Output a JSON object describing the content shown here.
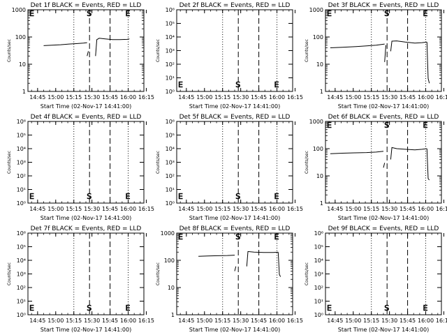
{
  "chart_data": [
    {
      "type": "line",
      "title": "Det 1f BLACK = Events, RED = LLD",
      "ylabel": "Counts/sec",
      "xlabel": "Start Time (02-Nov-17 14:41:00)",
      "log_y": true,
      "ylim": [
        1,
        1000
      ],
      "yticks": [
        "1",
        "10",
        "100",
        "1000"
      ],
      "xlim": [
        -4,
        92
      ],
      "xticks": [
        {
          "v": 4,
          "l": "14:45"
        },
        {
          "v": 19,
          "l": "15:00"
        },
        {
          "v": 34,
          "l": "15:15"
        },
        {
          "v": 49,
          "l": "15:30"
        },
        {
          "v": 64,
          "l": "15:45"
        },
        {
          "v": 79,
          "l": "16:00"
        },
        {
          "v": 94,
          "l": "16:15"
        }
      ],
      "markers": [
        {
          "v": -3,
          "l": "E"
        },
        {
          "v": 47,
          "l": "S"
        },
        {
          "v": 79,
          "l": "E"
        }
      ],
      "dashed": [
        47,
        64
      ],
      "dotted": [
        34,
        79
      ],
      "segments": [
        [
          [
            9,
            48
          ],
          [
            16,
            50
          ],
          [
            23,
            52
          ],
          [
            30,
            55
          ],
          [
            36,
            57
          ],
          [
            42,
            60
          ],
          [
            45,
            62
          ]
        ],
        [
          [
            45,
            20
          ],
          [
            46,
            30
          ]
        ],
        [
          [
            52,
            20
          ],
          [
            53,
            80
          ],
          [
            55,
            90
          ],
          [
            60,
            85
          ],
          [
            66,
            80
          ],
          [
            72,
            80
          ],
          [
            78,
            82
          ],
          [
            80,
            85
          ]
        ]
      ]
    },
    {
      "type": "line",
      "title": "Det 2f BLACK = Events, RED = LLD",
      "ylabel": "Counts/sec",
      "xlabel": "Start Time (02-Nov-17 14:41:00)",
      "log_y": true,
      "ylim": [
        1,
        1000000
      ],
      "yticks": [
        "10⁰",
        "10¹",
        "10²",
        "10³",
        "10⁴",
        "10⁵",
        "10⁶"
      ],
      "xlim": [
        -4,
        92
      ],
      "xticks": [
        {
          "v": 4,
          "l": "14:45"
        },
        {
          "v": 19,
          "l": "15:00"
        },
        {
          "v": 34,
          "l": "15:15"
        },
        {
          "v": 49,
          "l": "15:30"
        },
        {
          "v": 64,
          "l": "15:45"
        },
        {
          "v": 79,
          "l": "16:00"
        },
        {
          "v": 94,
          "l": "16:15"
        }
      ],
      "markers": [
        {
          "v": -3,
          "l": "E"
        },
        {
          "v": 47,
          "l": "S"
        },
        {
          "v": 79,
          "l": "E"
        }
      ],
      "dashed": [
        47,
        64
      ],
      "dotted": [
        34,
        79
      ],
      "segments": []
    },
    {
      "type": "line",
      "title": "Det 3f BLACK = Events, RED = LLD",
      "ylabel": "Counts/sec",
      "xlabel": "Start Time (02-Nov-17 14:41:00)",
      "log_y": true,
      "ylim": [
        1,
        1000
      ],
      "yticks": [
        "1",
        "10",
        "100",
        "1000"
      ],
      "xlim": [
        -4,
        92
      ],
      "xticks": [
        {
          "v": 4,
          "l": "14:45"
        },
        {
          "v": 19,
          "l": "15:00"
        },
        {
          "v": 34,
          "l": "15:15"
        },
        {
          "v": 49,
          "l": "15:30"
        },
        {
          "v": 64,
          "l": "15:45"
        },
        {
          "v": 79,
          "l": "16:00"
        },
        {
          "v": 94,
          "l": "16:15"
        }
      ],
      "markers": [
        {
          "v": -3,
          "l": "E"
        },
        {
          "v": 47,
          "l": "S"
        },
        {
          "v": 79,
          "l": "E"
        }
      ],
      "dashed": [
        47,
        64
      ],
      "dotted": [
        34,
        79
      ],
      "segments": [
        [
          [
            0,
            40
          ],
          [
            10,
            42
          ],
          [
            20,
            44
          ],
          [
            30,
            47
          ],
          [
            38,
            50
          ],
          [
            45,
            55
          ]
        ],
        [
          [
            45,
            12
          ],
          [
            46,
            50
          ]
        ],
        [
          [
            50,
            30
          ],
          [
            51,
            70
          ],
          [
            55,
            72
          ],
          [
            62,
            65
          ],
          [
            70,
            60
          ],
          [
            76,
            62
          ],
          [
            80,
            65
          ]
        ],
        [
          [
            80,
            65
          ],
          [
            81,
            3
          ],
          [
            82,
            2
          ]
        ]
      ]
    },
    {
      "type": "line",
      "title": "Det 4f BLACK = Events, RED = LLD",
      "ylabel": "Counts/sec",
      "xlabel": "Start Time (02-Nov-17 14:41:00)",
      "log_y": true,
      "ylim": [
        1,
        1000000
      ],
      "yticks": [
        "10⁰",
        "10¹",
        "10²",
        "10³",
        "10⁴",
        "10⁵",
        "10⁶"
      ],
      "xlim": [
        -4,
        92
      ],
      "xticks": [
        {
          "v": 4,
          "l": "14:45"
        },
        {
          "v": 19,
          "l": "15:00"
        },
        {
          "v": 34,
          "l": "15:15"
        },
        {
          "v": 49,
          "l": "15:30"
        },
        {
          "v": 64,
          "l": "15:45"
        },
        {
          "v": 79,
          "l": "16:00"
        },
        {
          "v": 94,
          "l": "16:15"
        }
      ],
      "markers": [
        {
          "v": -3,
          "l": "E"
        },
        {
          "v": 47,
          "l": "S"
        },
        {
          "v": 79,
          "l": "E"
        }
      ],
      "dashed": [
        47,
        64
      ],
      "dotted": [
        34,
        79
      ],
      "segments": []
    },
    {
      "type": "line",
      "title": "Det 5f BLACK = Events, RED = LLD",
      "ylabel": "Counts/sec",
      "xlabel": "Start Time (02-Nov-17 14:41:00)",
      "log_y": true,
      "ylim": [
        1,
        1000000
      ],
      "yticks": [
        "10⁰",
        "10¹",
        "10²",
        "10³",
        "10⁴",
        "10⁵",
        "10⁶"
      ],
      "xlim": [
        -4,
        92
      ],
      "xticks": [
        {
          "v": 4,
          "l": "14:45"
        },
        {
          "v": 19,
          "l": "15:00"
        },
        {
          "v": 34,
          "l": "15:15"
        },
        {
          "v": 49,
          "l": "15:30"
        },
        {
          "v": 64,
          "l": "15:45"
        },
        {
          "v": 79,
          "l": "16:00"
        },
        {
          "v": 94,
          "l": "16:15"
        }
      ],
      "markers": [
        {
          "v": -3,
          "l": "E"
        },
        {
          "v": 47,
          "l": "S"
        },
        {
          "v": 79,
          "l": "E"
        }
      ],
      "dashed": [
        47,
        64
      ],
      "dotted": [
        34,
        79
      ],
      "segments": []
    },
    {
      "type": "line",
      "title": "Det 6f BLACK = Events, RED = LLD",
      "ylabel": "Counts/sec",
      "xlabel": "Start Time (02-Nov-17 14:41:00)",
      "log_y": true,
      "ylim": [
        1,
        1000
      ],
      "yticks": [
        "1",
        "10",
        "100",
        "1000"
      ],
      "xlim": [
        -4,
        92
      ],
      "xticks": [
        {
          "v": 4,
          "l": "14:45"
        },
        {
          "v": 19,
          "l": "15:00"
        },
        {
          "v": 34,
          "l": "15:15"
        },
        {
          "v": 49,
          "l": "15:30"
        },
        {
          "v": 64,
          "l": "15:45"
        },
        {
          "v": 79,
          "l": "16:00"
        },
        {
          "v": 94,
          "l": "16:15"
        }
      ],
      "markers": [
        {
          "v": -3,
          "l": "E"
        },
        {
          "v": 47,
          "l": "S"
        },
        {
          "v": 79,
          "l": "E"
        }
      ],
      "dashed": [
        47,
        64
      ],
      "dotted": [
        34,
        79
      ],
      "segments": [
        [
          [
            0,
            65
          ],
          [
            10,
            68
          ],
          [
            20,
            70
          ],
          [
            30,
            72
          ],
          [
            38,
            75
          ],
          [
            44,
            80
          ]
        ],
        [
          [
            44,
            20
          ],
          [
            45,
            30
          ]
        ],
        [
          [
            50,
            40
          ],
          [
            51,
            110
          ],
          [
            55,
            100
          ],
          [
            62,
            95
          ],
          [
            70,
            90
          ],
          [
            76,
            95
          ],
          [
            80,
            100
          ]
        ],
        [
          [
            80,
            100
          ],
          [
            81,
            8
          ],
          [
            82,
            7
          ]
        ]
      ]
    },
    {
      "type": "line",
      "title": "Det 7f BLACK = Events, RED = LLD",
      "ylabel": "Counts/sec",
      "xlabel": "Start Time (02-Nov-17 14:41:00)",
      "log_y": true,
      "ylim": [
        1,
        1000000
      ],
      "yticks": [
        "10⁰",
        "10¹",
        "10²",
        "10³",
        "10⁴",
        "10⁵",
        "10⁶"
      ],
      "xlim": [
        -4,
        92
      ],
      "xticks": [
        {
          "v": 4,
          "l": "14:45"
        },
        {
          "v": 19,
          "l": "15:00"
        },
        {
          "v": 34,
          "l": "15:15"
        },
        {
          "v": 49,
          "l": "15:30"
        },
        {
          "v": 64,
          "l": "15:45"
        },
        {
          "v": 79,
          "l": "16:00"
        },
        {
          "v": 94,
          "l": "16:15"
        }
      ],
      "markers": [
        {
          "v": -3,
          "l": "E"
        },
        {
          "v": 47,
          "l": "S"
        },
        {
          "v": 79,
          "l": "E"
        }
      ],
      "dashed": [
        47,
        64
      ],
      "dotted": [
        34,
        79
      ],
      "segments": []
    },
    {
      "type": "line",
      "title": "Det 8f BLACK = Events, RED = LLD",
      "ylabel": "Counts/sec",
      "xlabel": "Start Time (02-Nov-17 14:41:00)",
      "log_y": true,
      "ylim": [
        1,
        1000
      ],
      "yticks": [
        "1",
        "10",
        "100",
        "1000"
      ],
      "xlim": [
        -4,
        92
      ],
      "xticks": [
        {
          "v": 4,
          "l": "14:45"
        },
        {
          "v": 19,
          "l": "15:00"
        },
        {
          "v": 34,
          "l": "15:15"
        },
        {
          "v": 49,
          "l": "15:30"
        },
        {
          "v": 64,
          "l": "15:45"
        },
        {
          "v": 79,
          "l": "16:00"
        },
        {
          "v": 94,
          "l": "16:15"
        }
      ],
      "markers": [
        {
          "v": -3,
          "l": "E"
        },
        {
          "v": 47,
          "l": "S"
        },
        {
          "v": 79,
          "l": "E"
        }
      ],
      "dashed": [
        47,
        64
      ],
      "dotted": [
        34,
        79
      ],
      "segments": [
        [
          [
            14,
            140
          ],
          [
            22,
            145
          ],
          [
            30,
            148
          ],
          [
            38,
            150
          ],
          [
            44,
            155
          ]
        ],
        [
          [
            44,
            40
          ],
          [
            45,
            60
          ]
        ],
        [
          [
            54,
            60
          ],
          [
            55,
            210
          ],
          [
            60,
            200
          ],
          [
            68,
            195
          ],
          [
            76,
            195
          ],
          [
            80,
            200
          ]
        ],
        [
          [
            80,
            200
          ],
          [
            81,
            30
          ],
          [
            82,
            25
          ]
        ]
      ]
    },
    {
      "type": "line",
      "title": "Det 9f BLACK = Events, RED = LLD",
      "ylabel": "Counts/sec",
      "xlabel": "Start Time (02-Nov-17 14:41:00)",
      "log_y": true,
      "ylim": [
        1,
        1000000
      ],
      "yticks": [
        "10⁰",
        "10¹",
        "10²",
        "10³",
        "10⁴",
        "10⁵",
        "10⁶"
      ],
      "xlim": [
        -4,
        92
      ],
      "xticks": [
        {
          "v": 4,
          "l": "14:45"
        },
        {
          "v": 19,
          "l": "15:00"
        },
        {
          "v": 34,
          "l": "15:15"
        },
        {
          "v": 49,
          "l": "15:30"
        },
        {
          "v": 64,
          "l": "15:45"
        },
        {
          "v": 79,
          "l": "16:00"
        },
        {
          "v": 94,
          "l": "16:15"
        }
      ],
      "markers": [
        {
          "v": -3,
          "l": "E"
        },
        {
          "v": 47,
          "l": "S"
        },
        {
          "v": 79,
          "l": "E"
        }
      ],
      "dashed": [
        47,
        64
      ],
      "dotted": [
        34,
        79
      ],
      "segments": []
    }
  ]
}
